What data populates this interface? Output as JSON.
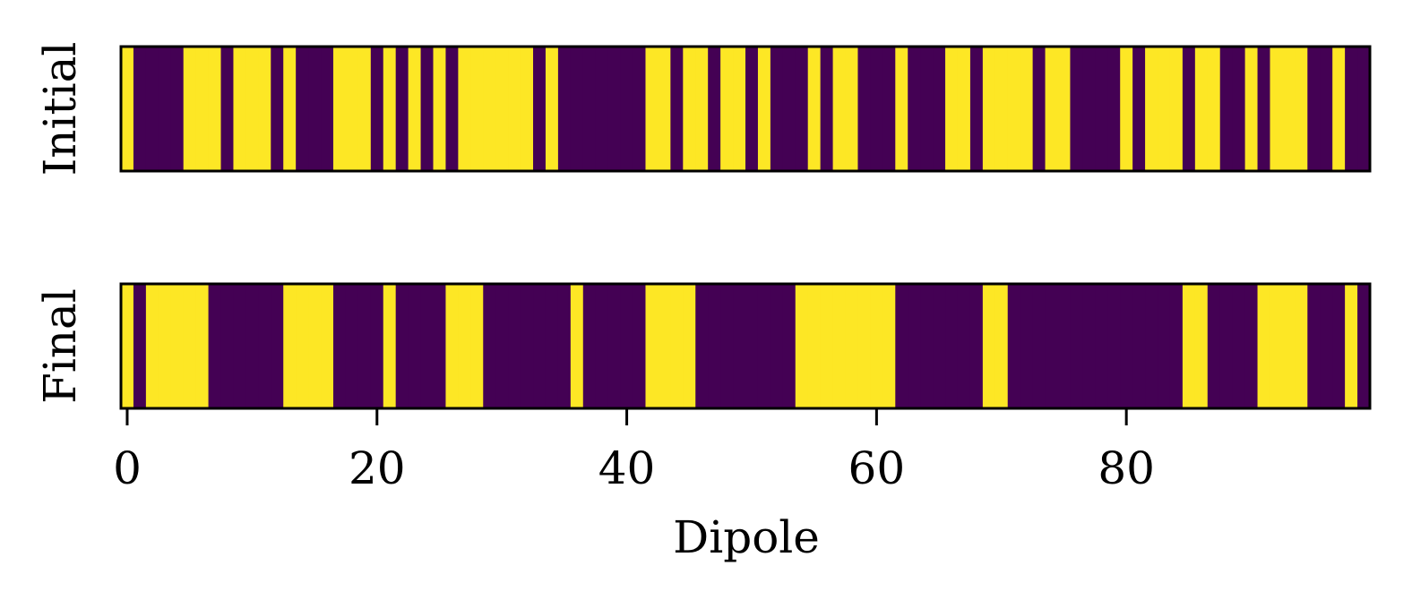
{
  "chart_data": {
    "type": "heatmap",
    "xlabel": "Dipole",
    "x_ticks": [
      0,
      20,
      40,
      60,
      80
    ],
    "x_range": [
      -0.5,
      99.5
    ],
    "colormap": "viridis",
    "colors": {
      "low": "#440154",
      "high": "#fde725",
      "frame": "#000000"
    },
    "grid": false,
    "rows": [
      {
        "ylabel": "Initial",
        "values": [
          1,
          0,
          0,
          0,
          0,
          1,
          1,
          1,
          0,
          1,
          1,
          1,
          0,
          1,
          0,
          0,
          0,
          1,
          1,
          1,
          0,
          1,
          0,
          1,
          0,
          1,
          0,
          1,
          1,
          1,
          1,
          1,
          1,
          0,
          1,
          0,
          0,
          0,
          0,
          0,
          0,
          0,
          1,
          1,
          0,
          1,
          1,
          0,
          1,
          1,
          0,
          1,
          0,
          0,
          0,
          1,
          0,
          1,
          1,
          0,
          0,
          0,
          1,
          0,
          0,
          0,
          1,
          1,
          0,
          1,
          1,
          1,
          1,
          0,
          1,
          1,
          0,
          0,
          0,
          0,
          1,
          0,
          1,
          1,
          1,
          0,
          1,
          1,
          0,
          0,
          1,
          0,
          1,
          1,
          1,
          0,
          0,
          1,
          0,
          0
        ]
      },
      {
        "ylabel": "Final",
        "values": [
          1,
          0,
          1,
          1,
          1,
          1,
          1,
          0,
          0,
          0,
          0,
          0,
          0,
          1,
          1,
          1,
          1,
          0,
          0,
          0,
          0,
          1,
          0,
          0,
          0,
          0,
          1,
          1,
          1,
          0,
          0,
          0,
          0,
          0,
          0,
          0,
          1,
          0,
          0,
          0,
          0,
          0,
          1,
          1,
          1,
          1,
          0,
          0,
          0,
          0,
          0,
          0,
          0,
          0,
          1,
          1,
          1,
          1,
          1,
          1,
          1,
          1,
          0,
          0,
          0,
          0,
          0,
          0,
          0,
          1,
          1,
          0,
          0,
          0,
          0,
          0,
          0,
          0,
          0,
          0,
          0,
          0,
          0,
          0,
          0,
          1,
          1,
          0,
          0,
          0,
          0,
          1,
          1,
          1,
          1,
          0,
          0,
          0,
          1,
          0
        ]
      }
    ]
  }
}
